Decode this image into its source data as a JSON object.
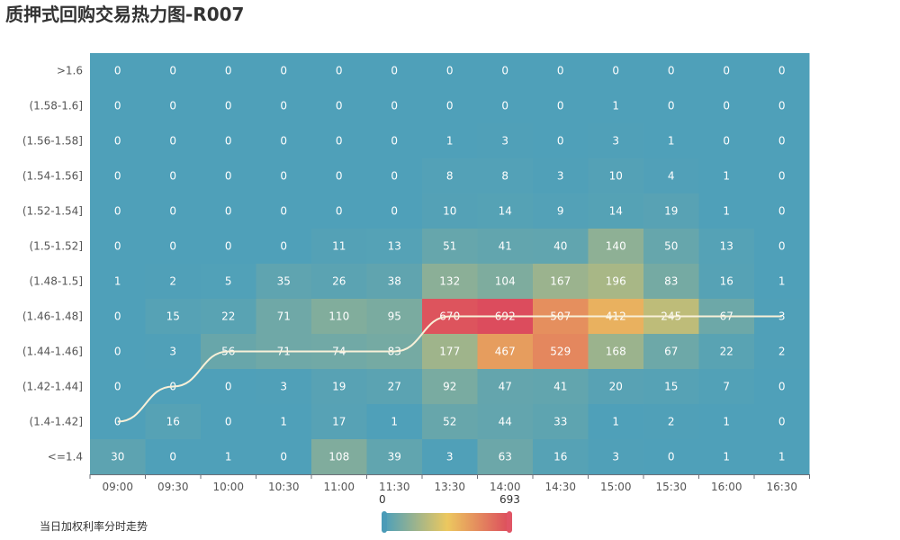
{
  "title": "质押式回购交易热力图-R007",
  "chart_data": {
    "type": "heatmap",
    "title": "质押式回购交易热力图-R007",
    "x_categories": [
      "09:00",
      "09:30",
      "10:00",
      "10:30",
      "11:00",
      "11:30",
      "13:30",
      "14:00",
      "14:30",
      "15:00",
      "15:30",
      "16:00",
      "16:30"
    ],
    "y_categories": [
      "<=1.4",
      "(1.4-1.42]",
      "(1.42-1.44]",
      "(1.44-1.46]",
      "(1.46-1.48]",
      "(1.48-1.5]",
      "(1.5-1.52]",
      "(1.52-1.54]",
      "(1.54-1.56]",
      "(1.56-1.58]",
      "(1.58-1.6]",
      ">1.6"
    ],
    "values": [
      [
        30,
        0,
        1,
        0,
        108,
        39,
        3,
        63,
        16,
        3,
        0,
        1,
        1
      ],
      [
        0,
        16,
        0,
        1,
        17,
        1,
        52,
        44,
        33,
        1,
        2,
        1,
        0
      ],
      [
        0,
        0,
        0,
        3,
        19,
        27,
        92,
        47,
        41,
        20,
        15,
        7,
        0
      ],
      [
        0,
        3,
        56,
        71,
        74,
        83,
        177,
        467,
        529,
        168,
        67,
        22,
        2
      ],
      [
        0,
        15,
        22,
        71,
        110,
        95,
        670,
        692,
        507,
        412,
        245,
        67,
        3
      ],
      [
        1,
        2,
        5,
        35,
        26,
        38,
        132,
        104,
        167,
        196,
        83,
        16,
        1
      ],
      [
        0,
        0,
        0,
        0,
        11,
        13,
        51,
        41,
        40,
        140,
        50,
        13,
        0
      ],
      [
        0,
        0,
        0,
        0,
        0,
        0,
        10,
        14,
        9,
        14,
        19,
        1,
        0
      ],
      [
        0,
        0,
        0,
        0,
        0,
        0,
        8,
        8,
        3,
        10,
        4,
        1,
        0
      ],
      [
        0,
        0,
        0,
        0,
        0,
        0,
        1,
        3,
        0,
        3,
        1,
        0,
        0
      ],
      [
        0,
        0,
        0,
        0,
        0,
        0,
        0,
        0,
        0,
        1,
        0,
        0,
        0
      ],
      [
        0,
        0,
        0,
        0,
        0,
        0,
        0,
        0,
        0,
        0,
        0,
        0,
        0
      ]
    ],
    "visual_map": {
      "min": 0,
      "max": 693,
      "min_label": "0",
      "max_label": "693"
    },
    "colors": [
      "#4fa0b9",
      "#ecc85f",
      "#dc4c5d"
    ],
    "trend_line": {
      "name": "当日加权利率分时走势",
      "color": "#f8f0d8",
      "values": [
        "(1.4-1.42]",
        "(1.42-1.44]",
        "(1.44-1.46]",
        "(1.44-1.46]",
        "(1.44-1.46]",
        "(1.44-1.46]",
        "(1.46-1.48]",
        "(1.46-1.48]",
        "(1.46-1.48]",
        "(1.46-1.48]",
        "(1.46-1.48]",
        "(1.46-1.48]",
        "(1.46-1.48]"
      ]
    }
  }
}
